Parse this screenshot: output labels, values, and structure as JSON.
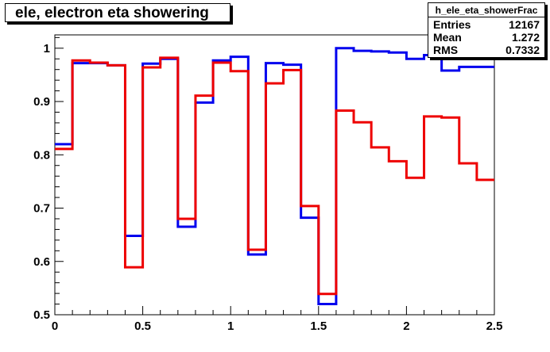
{
  "chart_data": {
    "type": "line",
    "title": "ele, electron eta showering",
    "xlabel": "",
    "ylabel": "",
    "xlim": [
      0,
      2.5
    ],
    "ylim": [
      0.5,
      1.025
    ],
    "x_ticks": [
      "0",
      "0.5",
      "1",
      "1.5",
      "2",
      "2.5"
    ],
    "y_ticks": [
      "0.5",
      "0.6",
      "0.7",
      "0.8",
      "0.9",
      "1"
    ],
    "bin_edges": [
      0,
      0.1,
      0.2,
      0.3,
      0.4,
      0.5,
      0.6,
      0.7,
      0.8,
      0.9,
      1.0,
      1.1,
      1.2,
      1.3,
      1.4,
      1.5,
      1.6,
      1.7,
      1.8,
      1.9,
      2.0,
      2.1,
      2.2,
      2.3,
      2.4,
      2.5
    ],
    "series": [
      {
        "color": "#0000ee",
        "values": [
          0.82,
          0.972,
          0.972,
          0.968,
          0.648,
          0.971,
          0.98,
          0.665,
          0.898,
          0.977,
          0.984,
          0.613,
          0.972,
          0.969,
          0.682,
          0.52,
          1.0,
          0.995,
          0.994,
          0.992,
          0.98,
          0.987,
          0.958,
          0.965,
          0.965
        ]
      },
      {
        "color": "#ee0000",
        "values": [
          0.811,
          0.977,
          0.973,
          0.968,
          0.589,
          0.964,
          0.982,
          0.68,
          0.911,
          0.973,
          0.957,
          0.622,
          0.934,
          0.959,
          0.704,
          0.539,
          0.883,
          0.861,
          0.814,
          0.788,
          0.757,
          0.872,
          0.87,
          0.784,
          0.753
        ]
      }
    ]
  },
  "stats": {
    "name": "h_ele_eta_showerFrac",
    "entries_label": "Entries",
    "entries_value": "12167",
    "mean_label": "Mean",
    "mean_value": "1.272",
    "rms_label": "RMS",
    "rms_value": "0.7332"
  }
}
